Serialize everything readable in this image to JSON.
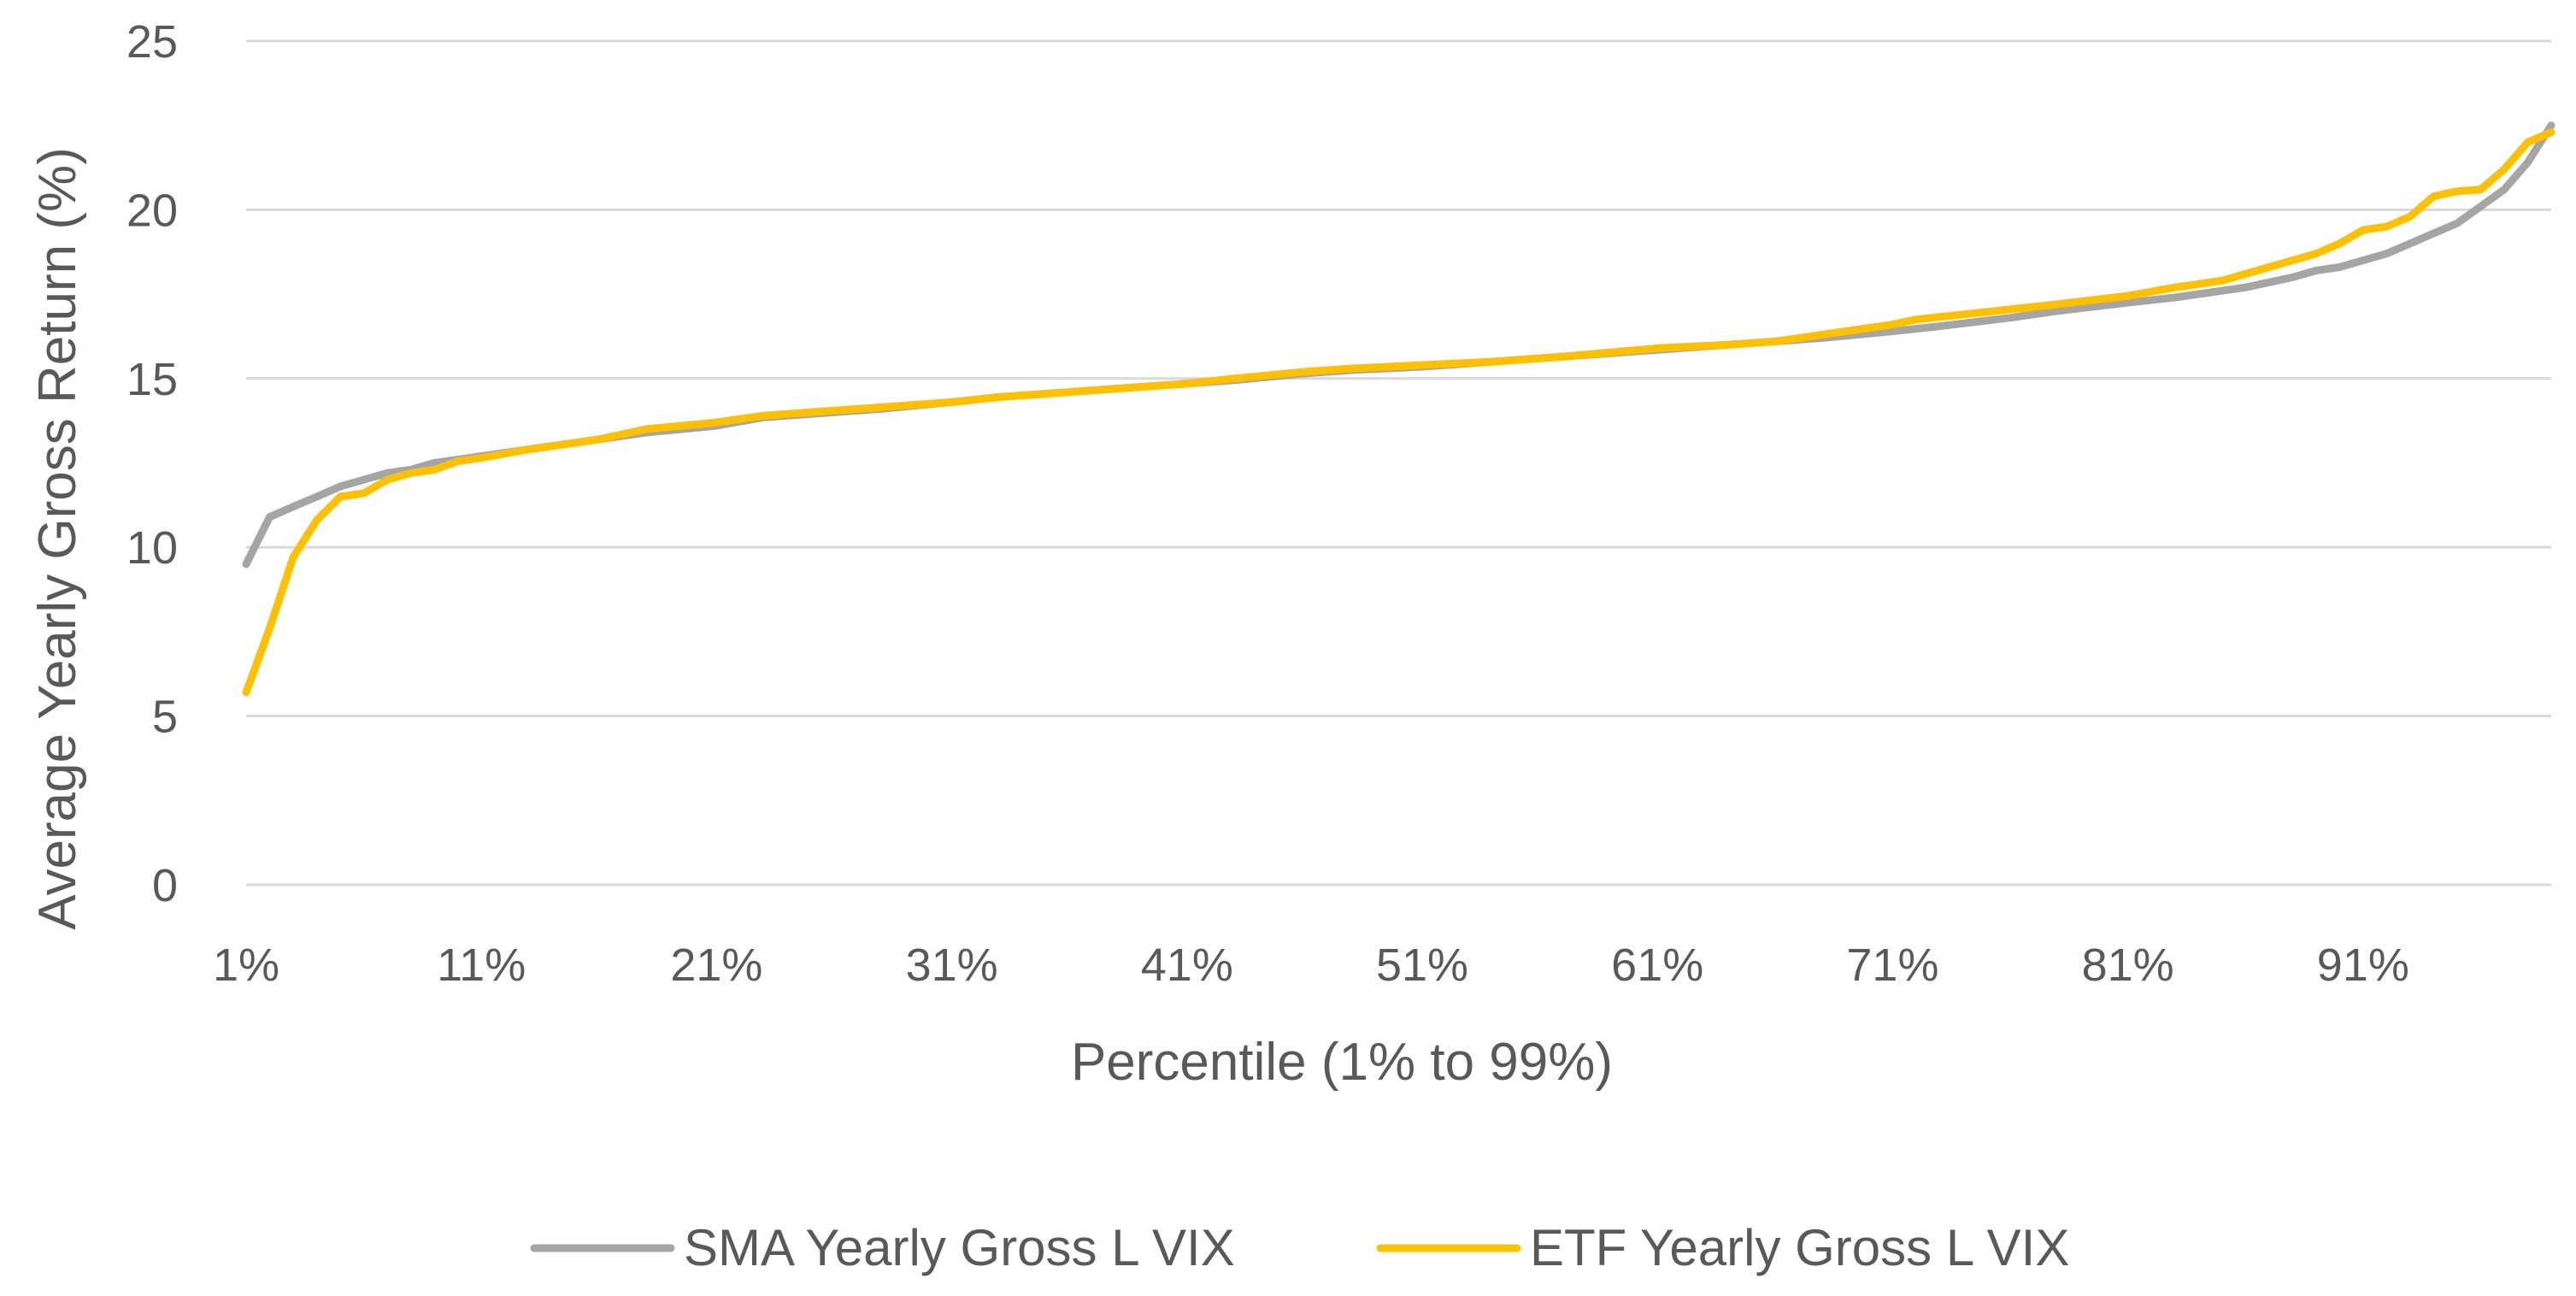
{
  "chart_data": {
    "type": "line",
    "title": "",
    "xlabel": "Percentile (1% to 99%)",
    "ylabel": "Average Yearly Gross Return (%)",
    "ylim": [
      0,
      25
    ],
    "yticks": [
      "0",
      "5",
      "10",
      "15",
      "20",
      "25"
    ],
    "xlim": [
      1,
      99
    ],
    "xtick_labels": [
      "1%",
      "11%",
      "21%",
      "31%",
      "41%",
      "51%",
      "61%",
      "71%",
      "81%",
      "91%"
    ],
    "grid": true,
    "legend_position": "bottom",
    "series": [
      {
        "name": "SMA Yearly Gross L VIX",
        "color": "#A5A5A5",
        "points": [
          [
            1,
            9.5
          ],
          [
            2,
            10.9
          ],
          [
            3,
            11.2
          ],
          [
            4,
            11.5
          ],
          [
            5,
            11.8
          ],
          [
            6,
            12.0
          ],
          [
            7,
            12.2
          ],
          [
            8,
            12.3
          ],
          [
            9,
            12.5
          ],
          [
            10,
            12.6
          ],
          [
            11,
            12.7
          ],
          [
            13,
            12.9
          ],
          [
            16,
            13.2
          ],
          [
            18,
            13.4
          ],
          [
            21,
            13.6
          ],
          [
            23,
            13.85
          ],
          [
            26,
            14.0
          ],
          [
            28,
            14.1
          ],
          [
            31,
            14.3
          ],
          [
            33,
            14.45
          ],
          [
            36,
            14.6
          ],
          [
            38,
            14.7
          ],
          [
            41,
            14.85
          ],
          [
            43,
            14.95
          ],
          [
            46,
            15.15
          ],
          [
            48,
            15.25
          ],
          [
            51,
            15.35
          ],
          [
            54,
            15.5
          ],
          [
            57,
            15.65
          ],
          [
            61,
            15.85
          ],
          [
            64,
            16.0
          ],
          [
            66,
            16.1
          ],
          [
            68,
            16.2
          ],
          [
            71,
            16.4
          ],
          [
            73,
            16.55
          ],
          [
            76,
            16.8
          ],
          [
            78,
            17.0
          ],
          [
            81,
            17.25
          ],
          [
            83,
            17.4
          ],
          [
            86,
            17.7
          ],
          [
            88,
            18.0
          ],
          [
            89,
            18.2
          ],
          [
            90,
            18.3
          ],
          [
            91,
            18.5
          ],
          [
            92,
            18.7
          ],
          [
            93,
            19.0
          ],
          [
            94,
            19.3
          ],
          [
            95,
            19.6
          ],
          [
            96,
            20.1
          ],
          [
            97,
            20.6
          ],
          [
            98,
            21.4
          ],
          [
            99,
            22.5
          ]
        ]
      },
      {
        "name": "ETF Yearly Gross L VIX",
        "color": "#FFC000",
        "points": [
          [
            1,
            5.7
          ],
          [
            2,
            7.6
          ],
          [
            3,
            9.7
          ],
          [
            4,
            10.8
          ],
          [
            5,
            11.5
          ],
          [
            6,
            11.6
          ],
          [
            7,
            12.0
          ],
          [
            8,
            12.2
          ],
          [
            9,
            12.3
          ],
          [
            10,
            12.55
          ],
          [
            11,
            12.65
          ],
          [
            13,
            12.9
          ],
          [
            16,
            13.2
          ],
          [
            18,
            13.5
          ],
          [
            21,
            13.7
          ],
          [
            23,
            13.9
          ],
          [
            26,
            14.05
          ],
          [
            28,
            14.15
          ],
          [
            31,
            14.3
          ],
          [
            33,
            14.45
          ],
          [
            36,
            14.6
          ],
          [
            38,
            14.7
          ],
          [
            41,
            14.85
          ],
          [
            43,
            15.0
          ],
          [
            46,
            15.2
          ],
          [
            48,
            15.3
          ],
          [
            51,
            15.4
          ],
          [
            54,
            15.5
          ],
          [
            57,
            15.65
          ],
          [
            61,
            15.9
          ],
          [
            64,
            16.0
          ],
          [
            66,
            16.1
          ],
          [
            68,
            16.3
          ],
          [
            71,
            16.6
          ],
          [
            72,
            16.75
          ],
          [
            74,
            16.9
          ],
          [
            76,
            17.05
          ],
          [
            78,
            17.2
          ],
          [
            81,
            17.45
          ],
          [
            83,
            17.7
          ],
          [
            85,
            17.9
          ],
          [
            87,
            18.3
          ],
          [
            89,
            18.7
          ],
          [
            90,
            19.0
          ],
          [
            91,
            19.4
          ],
          [
            92,
            19.5
          ],
          [
            93,
            19.8
          ],
          [
            94,
            20.4
          ],
          [
            95,
            20.55
          ],
          [
            96,
            20.6
          ],
          [
            97,
            21.2
          ],
          [
            98,
            22.0
          ],
          [
            99,
            22.3
          ]
        ]
      }
    ]
  }
}
